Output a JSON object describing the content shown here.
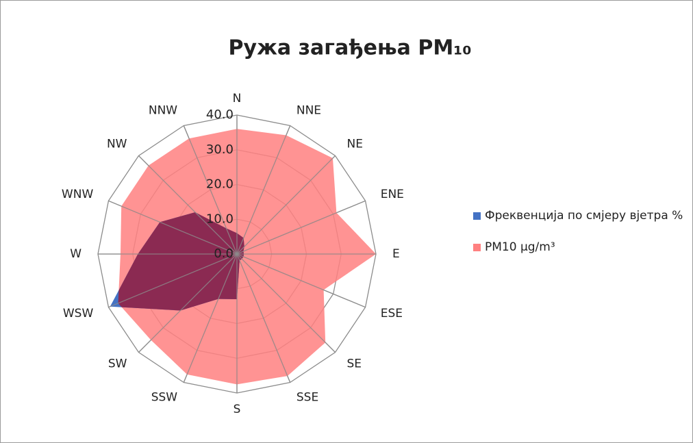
{
  "chart_data": {
    "type": "radar",
    "title": "Ружа загађења PM₁₀",
    "categories": [
      "N",
      "NNE",
      "NE",
      "ENE",
      "E",
      "ESE",
      "SE",
      "SSE",
      "S",
      "SSW",
      "SW",
      "WSW",
      "W",
      "WNW",
      "NW",
      "NNW"
    ],
    "series": [
      {
        "name": "Фреквенција по смјеру вјетра %",
        "color": "#4472c4",
        "values": [
          6,
          5,
          3,
          2,
          2,
          2,
          2,
          2,
          13,
          14,
          23,
          39.5,
          28.5,
          24,
          17,
          8
        ]
      },
      {
        "name": "PM10 µg/m³",
        "color": "#ff8080",
        "values": [
          36,
          37,
          39,
          31,
          40,
          27,
          36,
          38,
          37.5,
          37.5,
          35,
          37,
          33.5,
          36,
          36,
          36
        ]
      }
    ],
    "ylim": [
      0,
      40
    ],
    "yticks": [
      {
        "value": 0,
        "label": "0.0"
      },
      {
        "value": 10,
        "label": "10.0"
      },
      {
        "value": 20,
        "label": "20.0"
      },
      {
        "value": 30,
        "label": "30.0"
      },
      {
        "value": 40,
        "label": "40.0"
      }
    ],
    "grid": true
  }
}
